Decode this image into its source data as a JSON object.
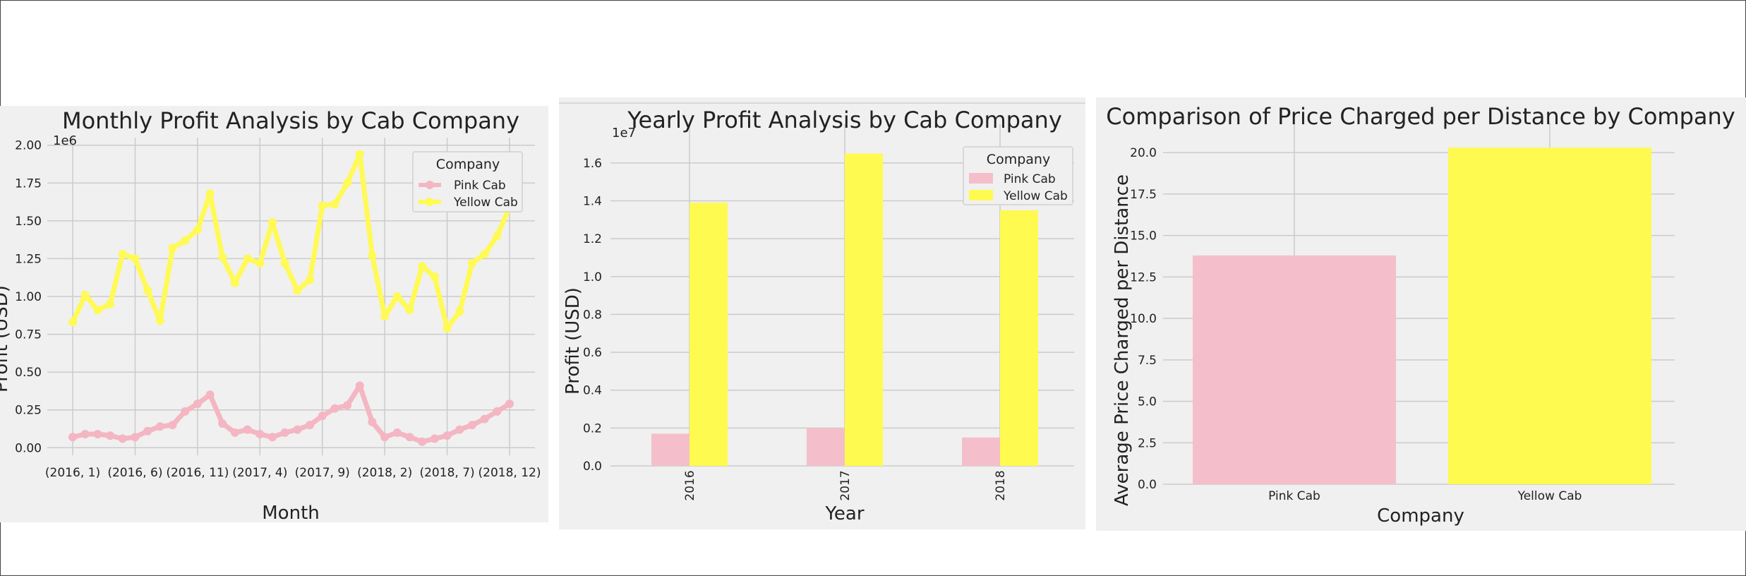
{
  "chart_data": [
    {
      "type": "line",
      "title": "Monthly Profit Analysis by Cab Company",
      "xlabel": "Month",
      "ylabel": "Profit (USD)",
      "y_scale_label": "1e6",
      "y_ticks": [
        "0.00",
        "0.25",
        "0.50",
        "0.75",
        "1.00",
        "1.25",
        "1.50",
        "1.75",
        "2.00"
      ],
      "ylim": [
        -0.05,
        2.05
      ],
      "x_tick_labels": [
        {
          "index": 0,
          "label": "(2016, 1)"
        },
        {
          "index": 5,
          "label": "(2016, 6)"
        },
        {
          "index": 10,
          "label": "(2016, 11)"
        },
        {
          "index": 15,
          "label": "(2017, 4)"
        },
        {
          "index": 20,
          "label": "(2017, 9)"
        },
        {
          "index": 25,
          "label": "(2018, 2)"
        },
        {
          "index": 30,
          "label": "(2018, 7)"
        },
        {
          "index": 35,
          "label": "(2018, 12)"
        }
      ],
      "legend": {
        "title": "Company",
        "position": "top-right"
      },
      "grid": true,
      "series": [
        {
          "name": "Pink Cab",
          "color": "#f4b6c2",
          "values": [
            0.07,
            0.09,
            0.09,
            0.08,
            0.06,
            0.07,
            0.11,
            0.14,
            0.15,
            0.24,
            0.29,
            0.35,
            0.16,
            0.1,
            0.12,
            0.09,
            0.07,
            0.1,
            0.12,
            0.15,
            0.21,
            0.26,
            0.28,
            0.41,
            0.17,
            0.07,
            0.1,
            0.07,
            0.04,
            0.06,
            0.08,
            0.12,
            0.15,
            0.19,
            0.24,
            0.29
          ]
        },
        {
          "name": "Yellow Cab",
          "color": "#fffa55",
          "values": [
            0.83,
            1.01,
            0.91,
            0.95,
            1.28,
            1.25,
            1.04,
            0.84,
            1.32,
            1.37,
            1.44,
            1.68,
            1.26,
            1.09,
            1.25,
            1.22,
            1.49,
            1.22,
            1.04,
            1.11,
            1.6,
            1.61,
            1.75,
            1.94,
            1.27,
            0.87,
            1.0,
            0.91,
            1.2,
            1.13,
            0.79,
            0.9,
            1.22,
            1.28,
            1.4,
            1.59
          ]
        }
      ]
    },
    {
      "type": "bar",
      "title": "Yearly Profit Analysis by Cab Company",
      "xlabel": "Year",
      "ylabel": "Profit (USD)",
      "y_scale_label": "1e7",
      "y_ticks": [
        "0.0",
        "0.2",
        "0.4",
        "0.6",
        "0.8",
        "1.0",
        "1.2",
        "1.4",
        "1.6"
      ],
      "ylim": [
        0,
        1.73
      ],
      "categories": [
        "2016",
        "2017",
        "2018"
      ],
      "legend": {
        "title": "Company",
        "position": "top-right"
      },
      "grid": true,
      "series": [
        {
          "name": "Pink Cab",
          "color": "#f4bfca",
          "values": [
            0.17,
            0.2,
            0.15
          ]
        },
        {
          "name": "Yellow Cab",
          "color": "#fffa50",
          "values": [
            1.39,
            1.65,
            1.35
          ]
        }
      ]
    },
    {
      "type": "bar",
      "title": "Comparison of Price Charged per Distance by Company",
      "xlabel": "Company",
      "ylabel": "Average Price Charged per Distance",
      "y_ticks": [
        "0.0",
        "2.5",
        "5.0",
        "7.5",
        "10.0",
        "12.5",
        "15.0",
        "17.5",
        "20.0"
      ],
      "ylim": [
        0,
        21.2
      ],
      "categories": [
        "Pink Cab",
        "Yellow Cab"
      ],
      "values": [
        13.8,
        20.3
      ],
      "colors": [
        "#f4bfca",
        "#fffa50"
      ],
      "grid": true
    }
  ]
}
